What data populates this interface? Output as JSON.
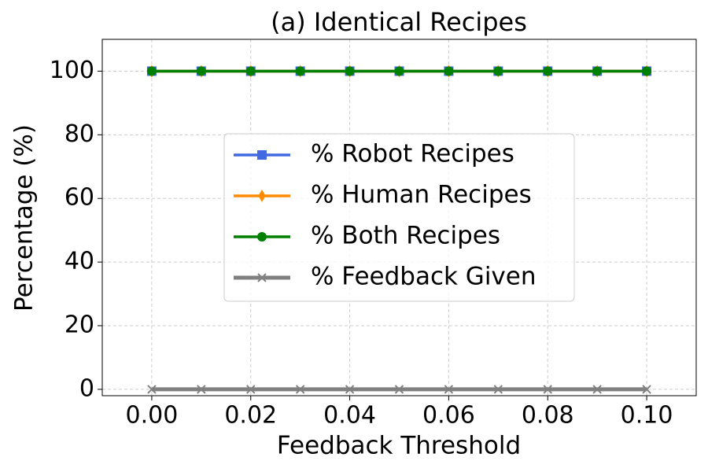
{
  "chart_data": {
    "type": "line",
    "title": "(a) Identical Recipes",
    "x_label": "Feedback Threshold",
    "y_label": "Percentage (%)",
    "x": [
      0.0,
      0.01,
      0.02,
      0.03,
      0.04,
      0.05,
      0.06,
      0.07,
      0.08,
      0.09,
      0.1
    ],
    "series": [
      {
        "name": "% Robot Recipes",
        "color": "#4169e1",
        "marker": "square",
        "values": [
          100,
          100,
          100,
          100,
          100,
          100,
          100,
          100,
          100,
          100,
          100
        ]
      },
      {
        "name": "% Human Recipes",
        "color": "#ff8c00",
        "marker": "thin-diamond",
        "values": [
          100,
          100,
          100,
          100,
          100,
          100,
          100,
          100,
          100,
          100,
          100
        ]
      },
      {
        "name": "% Both Recipes",
        "color": "#008000",
        "marker": "circle",
        "values": [
          100,
          100,
          100,
          100,
          100,
          100,
          100,
          100,
          100,
          100,
          100
        ]
      },
      {
        "name": "% Feedback Given",
        "color": "#808080",
        "marker": "x",
        "values": [
          0,
          0,
          0,
          0,
          0,
          0,
          0,
          0,
          0,
          0,
          0
        ]
      }
    ],
    "xlim": [
      -0.01,
      0.11
    ],
    "ylim": [
      -2,
      110
    ],
    "xticks": [
      {
        "value": 0.0,
        "label": "0.00"
      },
      {
        "value": 0.02,
        "label": "0.02"
      },
      {
        "value": 0.04,
        "label": "0.04"
      },
      {
        "value": 0.06,
        "label": "0.06"
      },
      {
        "value": 0.08,
        "label": "0.08"
      },
      {
        "value": 0.1,
        "label": "0.10"
      }
    ],
    "yticks": [
      0,
      20,
      40,
      60,
      80,
      100
    ],
    "grid": true,
    "legend": "center"
  }
}
